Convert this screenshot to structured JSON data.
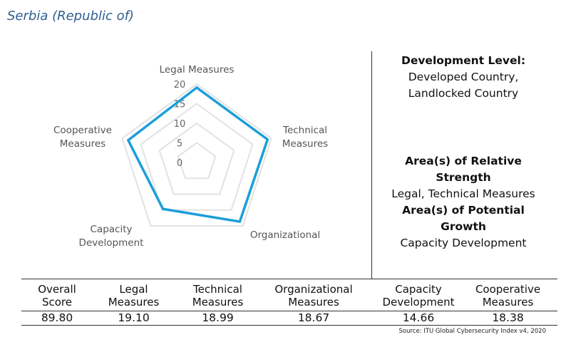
{
  "page_title": "Serbia (Republic of)",
  "chart_data": {
    "type": "radar",
    "title": "",
    "axes": [
      "Legal Measures",
      "Technical Measures",
      "Organizational",
      "Capacity Development",
      "Cooperative Measures"
    ],
    "axis_label_lines": [
      [
        "Legal Measures"
      ],
      [
        "Technical",
        "Measures"
      ],
      [
        "Organizational"
      ],
      [
        "Capacity",
        "Development"
      ],
      [
        "Cooperative",
        "Measures"
      ]
    ],
    "ticks": [
      "0",
      "5",
      "10",
      "15",
      "20"
    ],
    "rlim": [
      0,
      20
    ],
    "series": [
      {
        "values": [
          19.1,
          18.99,
          18.67,
          14.66,
          18.38
        ],
        "color": "#1b9fd9"
      }
    ],
    "grid_color": "#e2e2e2"
  },
  "info": {
    "dev_level_heading": "Development Level:",
    "dev_level_line1": "Developed Country,",
    "dev_level_line2": "Landlocked Country",
    "strength_heading": "Area(s) of Relative Strength",
    "strength_value": "Legal, Technical Measures",
    "growth_heading": "Area(s) of Potential Growth",
    "growth_value": "Capacity Development"
  },
  "table": {
    "headers": [
      [
        "Overall",
        "Score"
      ],
      [
        "Legal",
        "Measures"
      ],
      [
        "Technical",
        "Measures"
      ],
      [
        "Organizational",
        "Measures"
      ],
      [
        "Capacity",
        "Development"
      ],
      [
        "Cooperative",
        "Measures"
      ]
    ],
    "values": [
      "89.80",
      "19.10",
      "18.99",
      "18.67",
      "14.66",
      "18.38"
    ]
  },
  "source": "Source: ITU Global Cybersecurity Index v4, 2020"
}
